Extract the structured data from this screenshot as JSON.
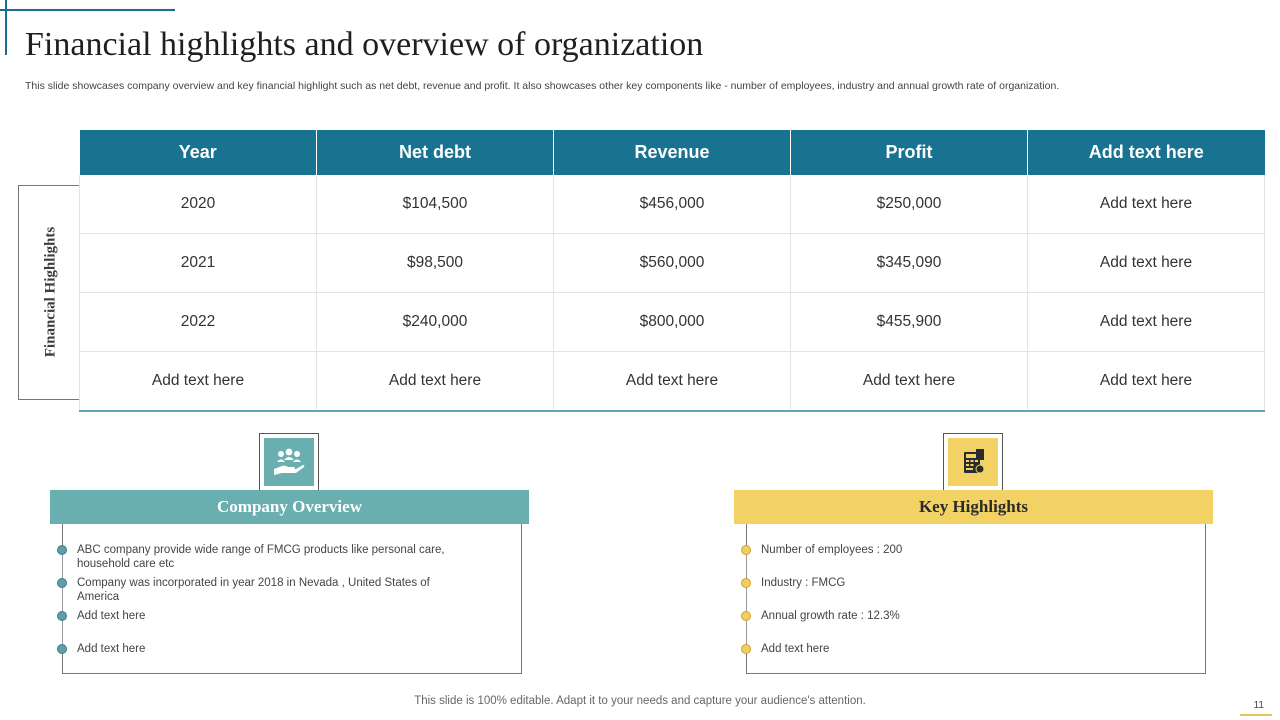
{
  "title": "Financial highlights and overview of organization",
  "subtitle": "This slide showcases company overview and key financial highlight such as net debt, revenue and profit. It also showcases other key components like - number of employees, industry and annual growth rate of organization.",
  "side_label": "Financial Highlights",
  "table": {
    "headers": [
      "Year",
      "Net debt",
      "Revenue",
      "Profit",
      "Add text here"
    ],
    "rows": [
      [
        "2020",
        "$104,500",
        "$456,000",
        "$250,000",
        "Add text here"
      ],
      [
        "2021",
        "$98,500",
        "$560,000",
        "$345,090",
        "Add text here"
      ],
      [
        "2022",
        "$240,000",
        "$800,000",
        "$455,900",
        "Add text here"
      ],
      [
        "Add text here",
        "Add text here",
        "Add text here",
        "Add text here",
        "Add text here"
      ]
    ]
  },
  "company_overview": {
    "title": "Company Overview",
    "icon": "hand-with-people-icon",
    "color": "#6aafb0",
    "items": [
      "ABC company provide wide range of FMCG  products like personal care, household care etc",
      "Company was incorporated in year 2018 in Nevada , United States of America",
      "Add text here",
      "Add text here"
    ]
  },
  "key_highlights": {
    "title": "Key Highlights",
    "icon": "calculator-document-icon",
    "color": "#f2d265",
    "items": [
      "Number of employees : 200",
      "Industry : FMCG",
      "Annual growth rate :  12.3%",
      "Add text here"
    ]
  },
  "footer": "This slide is 100% editable. Adapt it to your needs and capture your audience's attention.",
  "page_number": "11"
}
